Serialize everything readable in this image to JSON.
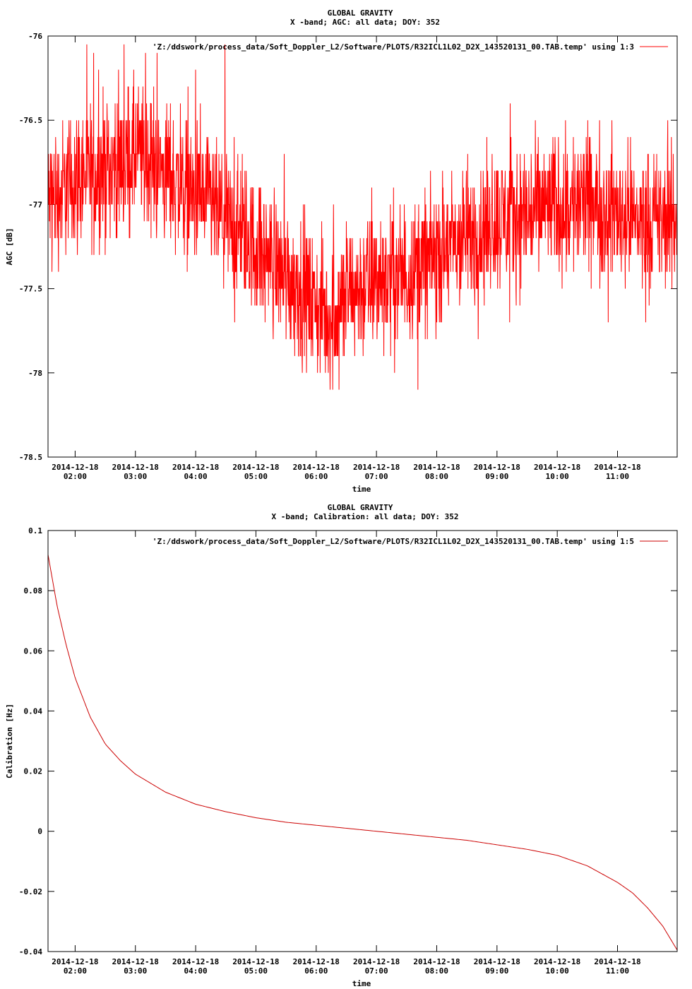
{
  "chart_data": [
    {
      "type": "line",
      "title": "GLOBAL GRAVITY",
      "subtitle": "X -band; AGC: all data; DOY: 352",
      "xlabel": "time",
      "ylabel": "AGC [dB]",
      "ylim": [
        -78.5,
        -76
      ],
      "yticks": [
        "-76",
        "-76.5",
        "-77",
        "-77.5",
        "-78",
        "-78.5"
      ],
      "ytick_values": [
        -76,
        -76.5,
        -77,
        -77.5,
        -78,
        -78.5
      ],
      "xlim": [
        1.55,
        11.99
      ],
      "xtick_values": [
        2,
        3,
        4,
        5,
        6,
        7,
        8,
        9,
        10,
        11
      ],
      "xticks": [
        {
          "date": "2014-12-18",
          "time": "02:00"
        },
        {
          "date": "2014-12-18",
          "time": "03:00"
        },
        {
          "date": "2014-12-18",
          "time": "04:00"
        },
        {
          "date": "2014-12-18",
          "time": "05:00"
        },
        {
          "date": "2014-12-18",
          "time": "06:00"
        },
        {
          "date": "2014-12-18",
          "time": "07:00"
        },
        {
          "date": "2014-12-18",
          "time": "08:00"
        },
        {
          "date": "2014-12-18",
          "time": "09:00"
        },
        {
          "date": "2014-12-18",
          "time": "10:00"
        },
        {
          "date": "2014-12-18",
          "time": "11:00"
        }
      ],
      "legend_position": "top-right",
      "series": [
        {
          "name": "'Z:/ddswork/process_data/Soft_Doppler_L2/Software/PLOTS/R32ICL1L02_D2X_143520131_00.TAB.temp' using 1:3",
          "color": "#ff0000",
          "trend_x": [
            1.55,
            2.0,
            2.5,
            3.0,
            3.5,
            4.0,
            4.5,
            5.0,
            5.5,
            6.0,
            6.2,
            6.5,
            7.0,
            7.5,
            8.0,
            8.5,
            9.0,
            9.5,
            10.0,
            10.5,
            11.0,
            11.5,
            11.99
          ],
          "trend_y": [
            -77.0,
            -76.85,
            -76.8,
            -76.7,
            -76.8,
            -76.95,
            -77.1,
            -77.25,
            -77.4,
            -77.6,
            -77.7,
            -77.55,
            -77.45,
            -77.4,
            -77.3,
            -77.2,
            -77.1,
            -77.05,
            -77.0,
            -77.0,
            -77.05,
            -77.1,
            -77.1
          ],
          "noise_spread": 0.3
        }
      ]
    },
    {
      "type": "line",
      "title": "GLOBAL GRAVITY",
      "subtitle": "X -band; Calibration: all data; DOY: 352",
      "xlabel": "time",
      "ylabel": "Calibration [Hz]",
      "ylim": [
        -0.04,
        0.1
      ],
      "yticks": [
        "0.1",
        "0.08",
        "0.06",
        "0.04",
        "0.02",
        "0",
        "-0.02",
        "-0.04"
      ],
      "ytick_values": [
        0.1,
        0.08,
        0.06,
        0.04,
        0.02,
        0,
        -0.02,
        -0.04
      ],
      "xlim": [
        1.55,
        11.99
      ],
      "xtick_values": [
        2,
        3,
        4,
        5,
        6,
        7,
        8,
        9,
        10,
        11
      ],
      "xticks": [
        {
          "date": "2014-12-18",
          "time": "02:00"
        },
        {
          "date": "2014-12-18",
          "time": "03:00"
        },
        {
          "date": "2014-12-18",
          "time": "04:00"
        },
        {
          "date": "2014-12-18",
          "time": "05:00"
        },
        {
          "date": "2014-12-18",
          "time": "06:00"
        },
        {
          "date": "2014-12-18",
          "time": "07:00"
        },
        {
          "date": "2014-12-18",
          "time": "08:00"
        },
        {
          "date": "2014-12-18",
          "time": "09:00"
        },
        {
          "date": "2014-12-18",
          "time": "10:00"
        },
        {
          "date": "2014-12-18",
          "time": "11:00"
        }
      ],
      "legend_position": "top-right",
      "series": [
        {
          "name": "'Z:/ddswork/process_data/Soft_Doppler_L2/Software/PLOTS/R32ICL1L02_D2X_143520131_00.TAB.temp' using 1:5",
          "color": "#cc0000",
          "x": [
            1.55,
            1.7,
            1.85,
            2.0,
            2.25,
            2.5,
            2.75,
            3.0,
            3.5,
            4.0,
            4.5,
            5.0,
            5.5,
            6.0,
            6.5,
            7.0,
            7.5,
            8.0,
            8.5,
            9.0,
            9.5,
            10.0,
            10.5,
            11.0,
            11.25,
            11.5,
            11.75,
            11.99
          ],
          "y": [
            0.092,
            0.075,
            0.062,
            0.051,
            0.038,
            0.029,
            0.0235,
            0.019,
            0.013,
            0.009,
            0.0065,
            0.0045,
            0.003,
            0.002,
            0.001,
            0.0,
            -0.001,
            -0.002,
            -0.003,
            -0.0045,
            -0.006,
            -0.008,
            -0.0115,
            -0.017,
            -0.0205,
            -0.0255,
            -0.0315,
            -0.0395
          ]
        }
      ]
    }
  ]
}
